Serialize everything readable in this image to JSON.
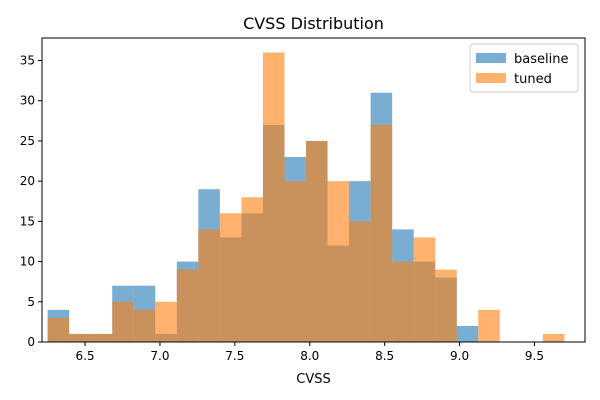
{
  "chart_data": {
    "type": "bar",
    "title": "CVSS Distribution",
    "xlabel": "CVSS",
    "ylabel": "",
    "xlim": [
      6.2125,
      9.8375
    ],
    "ylim": [
      0,
      37.8
    ],
    "xticks": [
      "6.5",
      "7.0",
      "7.5",
      "8.0",
      "8.5",
      "9.0",
      "9.5"
    ],
    "yticks": [
      "0",
      "5",
      "10",
      "15",
      "20",
      "25",
      "30",
      "35"
    ],
    "bin_edges": [
      6.25,
      6.3938,
      6.5375,
      6.6813,
      6.825,
      6.9688,
      7.1125,
      7.2563,
      7.4,
      7.5438,
      7.6875,
      7.8313,
      7.975,
      8.1188,
      8.2625,
      8.4063,
      8.55,
      8.6938,
      8.8375,
      8.9813,
      9.125,
      9.2688,
      9.4125,
      9.5563,
      9.7
    ],
    "legend_position": "top-right",
    "grid": false,
    "series": [
      {
        "name": "baseline",
        "color": "#1f77b4",
        "values": [
          4,
          1,
          1,
          7,
          7,
          1,
          10,
          19,
          13,
          16,
          27,
          23,
          25,
          12,
          20,
          31,
          14,
          10,
          8,
          2,
          0,
          0,
          0,
          0
        ]
      },
      {
        "name": "tuned",
        "color": "#ff7f0e",
        "values": [
          3,
          1,
          1,
          5,
          4,
          5,
          9,
          14,
          16,
          18,
          36,
          20,
          25,
          20,
          15,
          27,
          10,
          13,
          9,
          0,
          4,
          0,
          0,
          1
        ]
      }
    ]
  }
}
